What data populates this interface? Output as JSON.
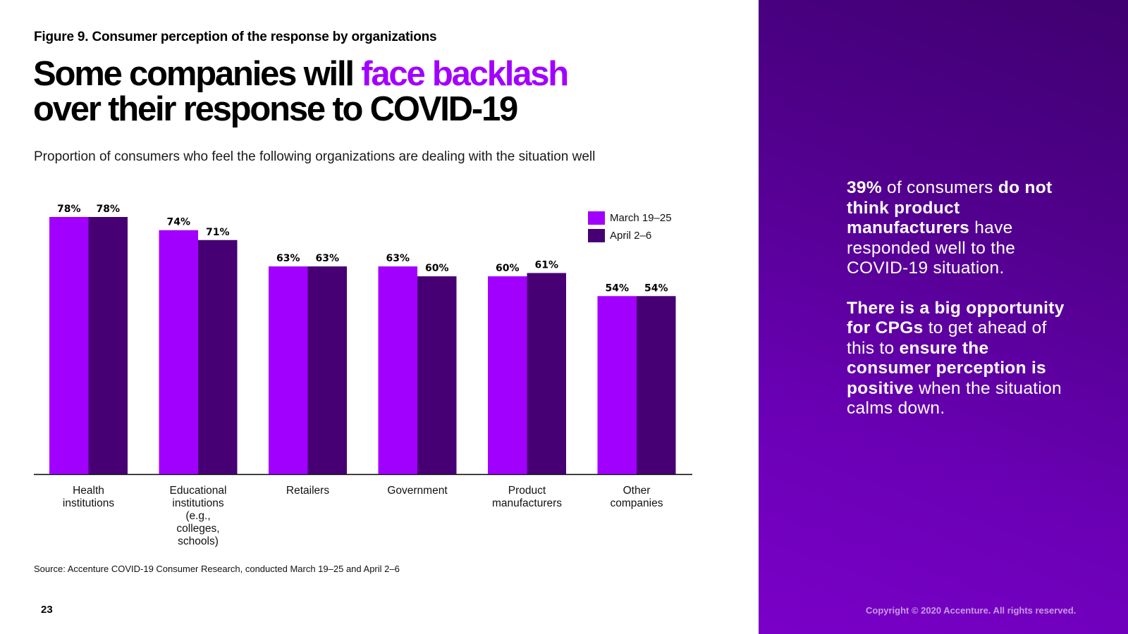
{
  "figure_label": "Figure 9. Consumer perception of the response by organizations",
  "headline": {
    "part1": "Some companies will ",
    "accent": "face backlash",
    "part2": "over their response to COVID-19"
  },
  "subtitle": "Proportion of consumers who feel the following organizations are dealing with the situation well",
  "colors": {
    "march": "#a100ff",
    "april": "#460073",
    "accent": "#a100ff"
  },
  "chart_data": {
    "type": "bar",
    "title": "Proportion of consumers who feel the following organizations are dealing with the situation well",
    "xlabel": "",
    "ylabel": "",
    "ylim": [
      0,
      100
    ],
    "grid": false,
    "legend_position": "top-right",
    "categories": [
      "Health\ninstitutions",
      "Educational\ninstitutions\n(e.g.,\ncolleges,\nschools)",
      "Retailers",
      "Government",
      "Product\nmanufacturers",
      "Other\ncompanies"
    ],
    "series": [
      {
        "name": "March 19–25",
        "values": [
          78,
          74,
          63,
          63,
          60,
          54
        ],
        "labels": [
          "78%",
          "74%",
          "63%",
          "63%",
          "60%",
          "54%"
        ]
      },
      {
        "name": "April 2–6",
        "values": [
          78,
          71,
          63,
          60,
          61,
          54
        ],
        "labels": [
          "78%",
          "71%",
          "63%",
          "60%",
          "61%",
          "54%"
        ]
      }
    ]
  },
  "source": "Source: Accenture COVID-19 Consumer Research, conducted March 19–25 and April 2–6",
  "page_number": "23",
  "callout": {
    "p1": [
      {
        "text": "39%",
        "bold": true
      },
      {
        "text": " of consumers ",
        "bold": false
      },
      {
        "text": "do not think product manufacturers",
        "bold": true
      },
      {
        "text": " have responded well to the COVID-19 situation.",
        "bold": false
      }
    ],
    "p2": [
      {
        "text": "There is a big opportunity for CPGs",
        "bold": true
      },
      {
        "text": " to get ahead of this to ",
        "bold": false
      },
      {
        "text": "ensure the consumer perception is positive",
        "bold": true
      },
      {
        "text": " when the situation calms down.",
        "bold": false
      }
    ]
  },
  "copyright": "Copyright © 2020 Accenture. All rights reserved."
}
